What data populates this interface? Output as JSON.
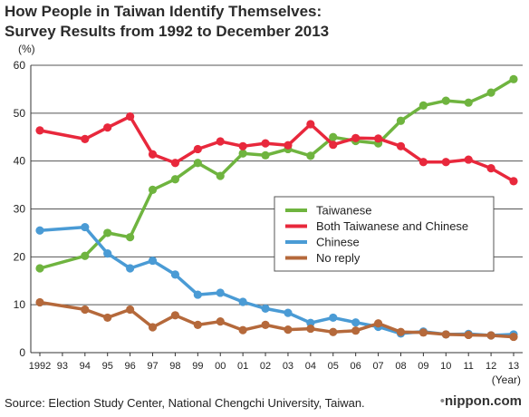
{
  "chart_data": {
    "type": "line",
    "title_line1": "How People in Taiwan Identify Themselves:",
    "title_line2": "Survey Results from 1992 to December 2013",
    "ylabel": "(%)",
    "xlabel": "(Year)",
    "ylim": [
      0,
      60
    ],
    "yticks": [
      "0",
      "10",
      "20",
      "30",
      "40",
      "50",
      "60"
    ],
    "xlim": [
      1992,
      2013
    ],
    "xtick_labels": [
      "1992",
      "93",
      "94",
      "95",
      "96",
      "97",
      "98",
      "99",
      "00",
      "01",
      "02",
      "03",
      "04",
      "05",
      "06",
      "07",
      "08",
      "09",
      "10",
      "11",
      "12",
      "13"
    ],
    "grid": true,
    "legend_position": "right",
    "series": [
      {
        "name": "Taiwanese",
        "color": "#6fb43f",
        "points": [
          [
            1992,
            17.6
          ],
          [
            1994,
            20.2
          ],
          [
            1995,
            25.0
          ],
          [
            1996,
            24.1
          ],
          [
            1997,
            34.0
          ],
          [
            1998,
            36.2
          ],
          [
            1999,
            39.6
          ],
          [
            2000,
            36.9
          ],
          [
            2001,
            41.6
          ],
          [
            2002,
            41.2
          ],
          [
            2003,
            42.5
          ],
          [
            2004,
            41.1
          ],
          [
            2005,
            45.0
          ],
          [
            2006,
            44.2
          ],
          [
            2007,
            43.7
          ],
          [
            2008,
            48.4
          ],
          [
            2009,
            51.6
          ],
          [
            2010,
            52.6
          ],
          [
            2011,
            52.2
          ],
          [
            2012,
            54.3
          ],
          [
            2013,
            57.1
          ]
        ]
      },
      {
        "name": "Both Taiwanese and Chinese",
        "color": "#e8283c",
        "points": [
          [
            1992,
            46.4
          ],
          [
            1994,
            44.6
          ],
          [
            1995,
            47.0
          ],
          [
            1996,
            49.3
          ],
          [
            1997,
            41.4
          ],
          [
            1998,
            39.6
          ],
          [
            1999,
            42.5
          ],
          [
            2000,
            44.1
          ],
          [
            2001,
            43.1
          ],
          [
            2002,
            43.7
          ],
          [
            2003,
            43.3
          ],
          [
            2004,
            47.7
          ],
          [
            2005,
            43.4
          ],
          [
            2006,
            44.8
          ],
          [
            2007,
            44.7
          ],
          [
            2008,
            43.1
          ],
          [
            2009,
            39.8
          ],
          [
            2010,
            39.8
          ],
          [
            2011,
            40.3
          ],
          [
            2012,
            38.5
          ],
          [
            2013,
            35.8
          ]
        ]
      },
      {
        "name": "Chinese",
        "color": "#4a9bd5",
        "points": [
          [
            1992,
            25.5
          ],
          [
            1994,
            26.2
          ],
          [
            1995,
            20.7
          ],
          [
            1996,
            17.6
          ],
          [
            1997,
            19.2
          ],
          [
            1998,
            16.3
          ],
          [
            1999,
            12.1
          ],
          [
            2000,
            12.5
          ],
          [
            2001,
            10.6
          ],
          [
            2002,
            9.2
          ],
          [
            2003,
            8.3
          ],
          [
            2004,
            6.2
          ],
          [
            2005,
            7.3
          ],
          [
            2006,
            6.3
          ],
          [
            2007,
            5.4
          ],
          [
            2008,
            4.0
          ],
          [
            2009,
            4.4
          ],
          [
            2010,
            3.8
          ],
          [
            2011,
            3.9
          ],
          [
            2012,
            3.6
          ],
          [
            2013,
            3.8
          ]
        ]
      },
      {
        "name": "No reply",
        "color": "#b5693b",
        "points": [
          [
            1992,
            10.5
          ],
          [
            1994,
            9.0
          ],
          [
            1995,
            7.3
          ],
          [
            1996,
            9.0
          ],
          [
            1997,
            5.3
          ],
          [
            1998,
            7.8
          ],
          [
            1999,
            5.8
          ],
          [
            2000,
            6.5
          ],
          [
            2001,
            4.7
          ],
          [
            2002,
            5.8
          ],
          [
            2003,
            4.8
          ],
          [
            2004,
            5.0
          ],
          [
            2005,
            4.3
          ],
          [
            2006,
            4.6
          ],
          [
            2007,
            6.1
          ],
          [
            2008,
            4.3
          ],
          [
            2009,
            4.2
          ],
          [
            2010,
            3.8
          ],
          [
            2011,
            3.7
          ],
          [
            2012,
            3.6
          ],
          [
            2013,
            3.3
          ]
        ]
      }
    ]
  },
  "source": "Source: Election Study Center, National Chengchi University, Taiwan.",
  "brand": {
    "mark": "•",
    "name": "nippon.com"
  }
}
